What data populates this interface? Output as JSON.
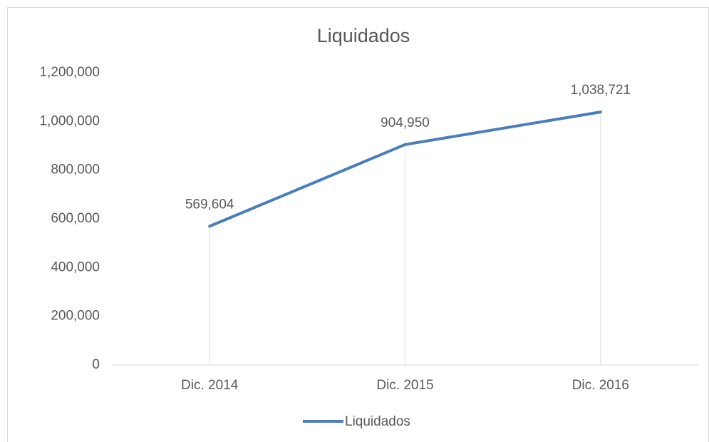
{
  "chart_data": {
    "type": "line",
    "title": "Liquidados",
    "categories": [
      "Dic. 2014",
      "Dic. 2015",
      "Dic. 2016"
    ],
    "series": [
      {
        "name": "Liquidados",
        "color": "#4a7ebb",
        "values": [
          569604,
          904950,
          1038721
        ],
        "value_labels": [
          "569,604",
          "904,950",
          "1,038,721"
        ]
      }
    ],
    "ylim": [
      0,
      1200000
    ],
    "yticks": [
      0,
      {
        "value": 200000,
        "label": "200,000"
      },
      {
        "value": 400000,
        "label": "400,000"
      },
      {
        "value": 600000,
        "label": "600,000"
      },
      {
        "value": 800000,
        "label": "800,000"
      },
      {
        "value": 1000000,
        "label": "1,000,000"
      },
      {
        "value": 1200000,
        "label": "1,200,000"
      }
    ],
    "drop_lines": true,
    "legend": "bottom"
  }
}
